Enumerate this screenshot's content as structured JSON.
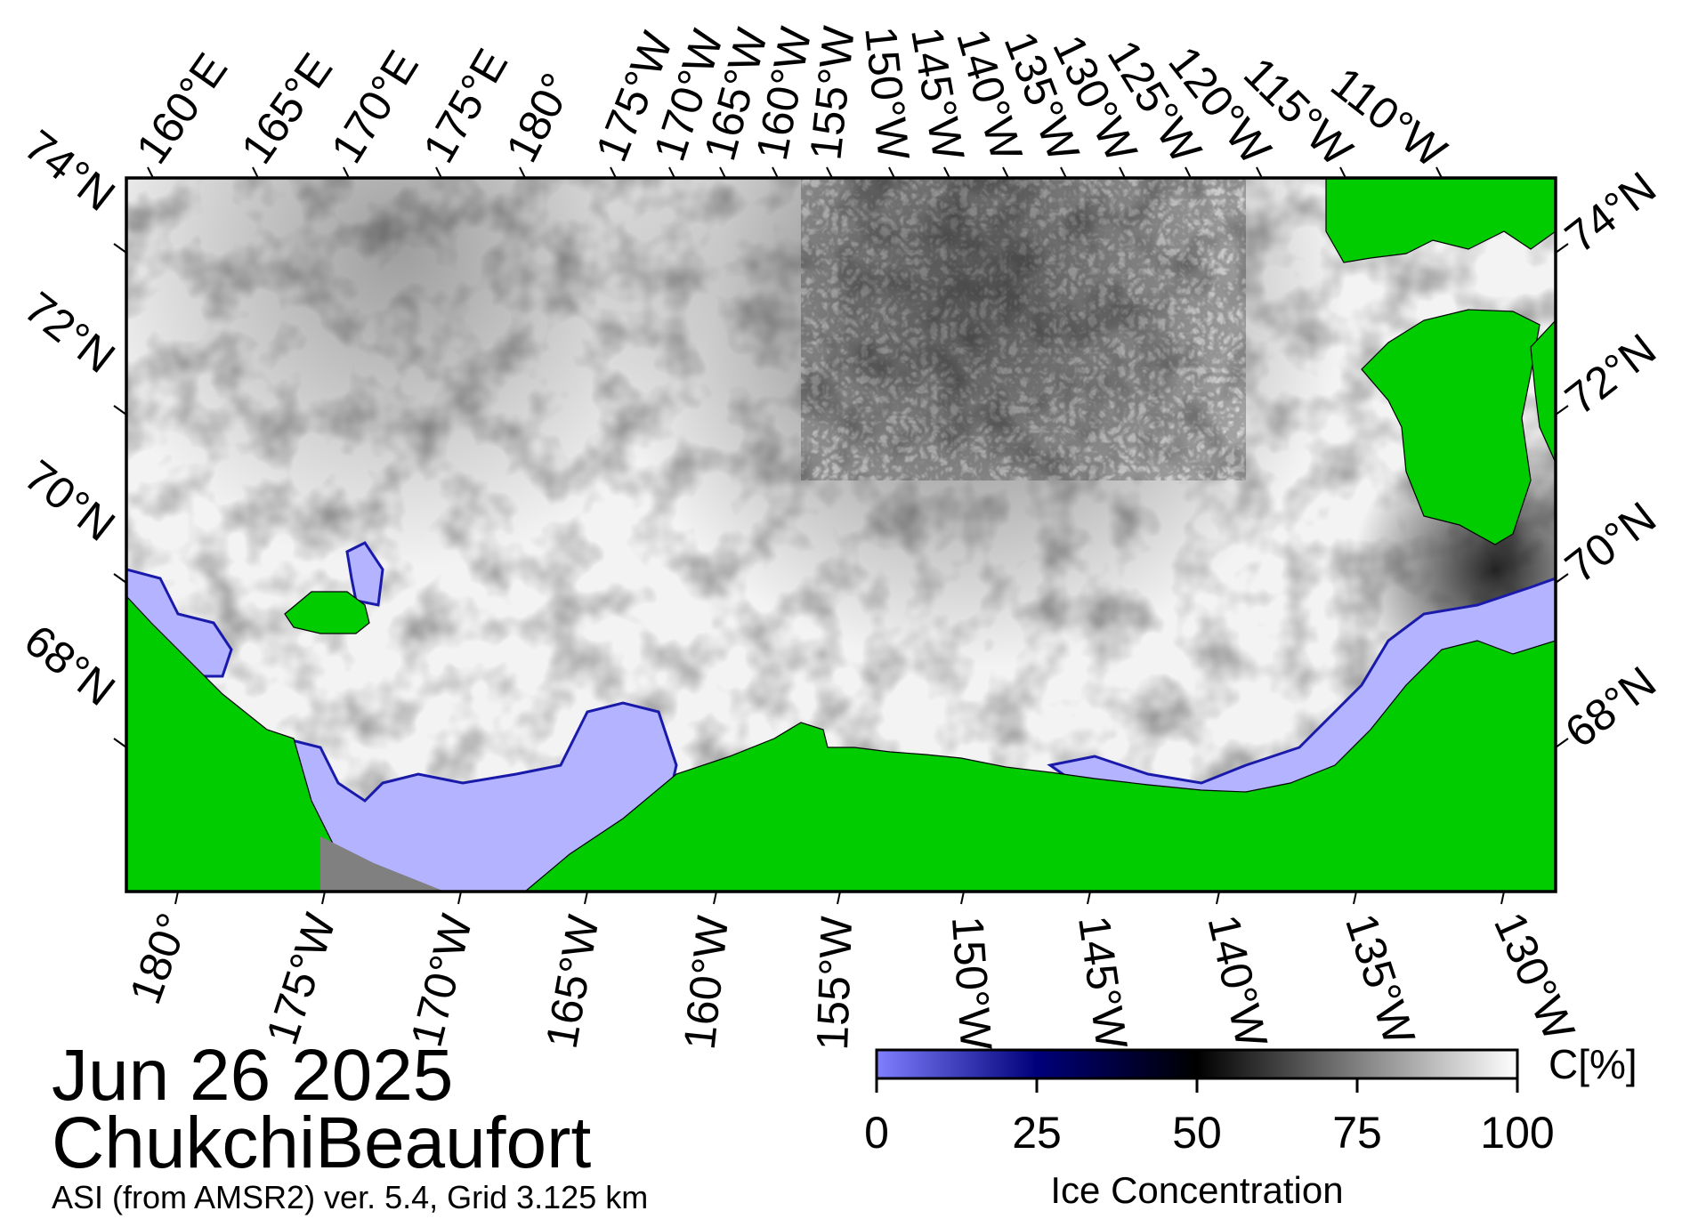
{
  "title": {
    "date": "Jun 26 2025",
    "region": "ChukchiBeaufort",
    "source": "ASI (from AMSR2) ver. 5.4,  Grid 3.125 km"
  },
  "map": {
    "top_longitude_labels": [
      "160°E",
      "165°E",
      "170°E",
      "175°E",
      "180°",
      "175°W",
      "170°W",
      "165°W",
      "160°W",
      "155°W",
      "150°W",
      "145°W",
      "140°W",
      "135°W",
      "130°W",
      "125°W",
      "120°W",
      "115°W",
      "110°W"
    ],
    "bottom_longitude_labels": [
      "180°",
      "175°W",
      "170°W",
      "165°W",
      "160°W",
      "155°W",
      "150°W",
      "145°W",
      "140°W",
      "135°W",
      "130°W"
    ],
    "left_latitude_labels": [
      "74°N",
      "72°N",
      "70°N",
      "68°N"
    ],
    "right_latitude_labels": [
      "74°N",
      "72°N",
      "70°N",
      "68°N"
    ],
    "colors": {
      "land": "#00cc00",
      "open_water": "#b3b3ff",
      "no_data": "#808080",
      "graticule": "#000000",
      "frame": "#000000"
    }
  },
  "colorbar": {
    "label": "Ice Concentration",
    "unit": "C[%]",
    "ticks": [
      "0",
      "25",
      "50",
      "75",
      "100"
    ],
    "tick_values": [
      0,
      25,
      50,
      75,
      100
    ],
    "gradient": [
      {
        "value": 0,
        "color": "#8080ff"
      },
      {
        "value": 25,
        "color": "#00007a"
      },
      {
        "value": 50,
        "color": "#000000"
      },
      {
        "value": 100,
        "color": "#ffffff"
      }
    ]
  }
}
